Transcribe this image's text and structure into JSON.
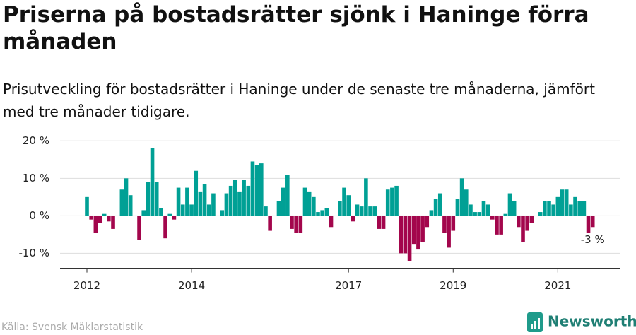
{
  "header": {
    "title": "Priserna på bostadsrätter sjönk i Haninge förra månaden",
    "subtitle": "Prisutveckling för bostadsrätter i Haninge under de senaste tre månaderna, jämfört med tre månader tidigare."
  },
  "chart_data": {
    "type": "bar",
    "categories": [
      "2012",
      null,
      null,
      null,
      null,
      null,
      null,
      null,
      null,
      null,
      null,
      null,
      null,
      null,
      null,
      null,
      null,
      null,
      null,
      null,
      null,
      null,
      null,
      null,
      "2014",
      null,
      null,
      null,
      null,
      null,
      null,
      null,
      null,
      null,
      null,
      null,
      null,
      null,
      null,
      null,
      null,
      null,
      null,
      null,
      null,
      null,
      null,
      null,
      null,
      null,
      null,
      null,
      null,
      null,
      null,
      null,
      null,
      null,
      null,
      null,
      "2017",
      null,
      null,
      null,
      null,
      null,
      null,
      null,
      null,
      null,
      null,
      null,
      null,
      null,
      null,
      null,
      null,
      null,
      null,
      null,
      null,
      null,
      null,
      null,
      "2019",
      null,
      null,
      null,
      null,
      null,
      null,
      null,
      null,
      null,
      null,
      null,
      null,
      null,
      null,
      null,
      null,
      null,
      null,
      null,
      null,
      null,
      null,
      null,
      "2021",
      null,
      null,
      null,
      null,
      null,
      null,
      null,
      null
    ],
    "values": [
      5,
      -1,
      -4.5,
      -2,
      0.5,
      -1.5,
      -3.5,
      0,
      7,
      10,
      5.5,
      0,
      -6.5,
      1.5,
      9,
      18,
      9,
      2,
      -6,
      0.5,
      -1,
      7.5,
      3,
      7.5,
      3,
      12,
      6.5,
      8.5,
      3,
      6,
      0,
      1.5,
      6,
      8,
      9.5,
      6.5,
      9.5,
      8,
      14.5,
      13.5,
      14,
      2.5,
      -4,
      0,
      4,
      7.5,
      11,
      -3.5,
      -4.5,
      -4.5,
      7.5,
      6.5,
      5,
      1,
      1.5,
      2,
      -3,
      0,
      4,
      7.5,
      5.5,
      -1.5,
      3,
      2.5,
      10,
      2.5,
      2.5,
      -3.5,
      -3.5,
      7,
      7.5,
      8,
      -10,
      -10,
      -12,
      -7.5,
      -9,
      -7,
      -3,
      1.5,
      4.5,
      6,
      -4.5,
      -8.5,
      -4,
      4.5,
      10,
      7,
      3,
      1,
      1,
      4,
      3,
      -1,
      -5,
      -5,
      0.5,
      6,
      4,
      -3,
      -7,
      -4,
      -2,
      0,
      1,
      4,
      4,
      3,
      5,
      7,
      7,
      3,
      5,
      4,
      4,
      -4.5,
      -3
    ],
    "value_labels": [
      null,
      null,
      null,
      null,
      null,
      null,
      null,
      null,
      null,
      null,
      null,
      null,
      null,
      null,
      null,
      null,
      null,
      null,
      null,
      null,
      null,
      null,
      null,
      null,
      null,
      null,
      null,
      null,
      null,
      null,
      null,
      null,
      null,
      null,
      null,
      null,
      null,
      null,
      null,
      null,
      null,
      null,
      null,
      null,
      null,
      null,
      null,
      null,
      null,
      null,
      null,
      null,
      null,
      null,
      null,
      null,
      null,
      null,
      null,
      null,
      null,
      null,
      null,
      null,
      null,
      null,
      null,
      null,
      null,
      null,
      null,
      null,
      null,
      null,
      null,
      null,
      null,
      null,
      null,
      null,
      null,
      null,
      null,
      null,
      null,
      null,
      null,
      null,
      null,
      null,
      null,
      null,
      null,
      null,
      null,
      null,
      null,
      null,
      null,
      null,
      null,
      null,
      null,
      null,
      null,
      null,
      null,
      null,
      null,
      null,
      null,
      null,
      null,
      null,
      null,
      null,
      "-3 %"
    ],
    "colors": {
      "positive": "#00a095",
      "negative": "#a3064c"
    },
    "ylim": [
      -14,
      21
    ],
    "yticks": [
      {
        "value": -10,
        "label": "-10 %"
      },
      {
        "value": 0,
        "label": "0 %"
      },
      {
        "value": 10,
        "label": "10 %"
      },
      {
        "value": 20,
        "label": "20 %"
      }
    ],
    "grid": true
  },
  "footer": {
    "source": "Källa: Svensk Mäklarstatistik",
    "brand": "Newsworthy"
  }
}
